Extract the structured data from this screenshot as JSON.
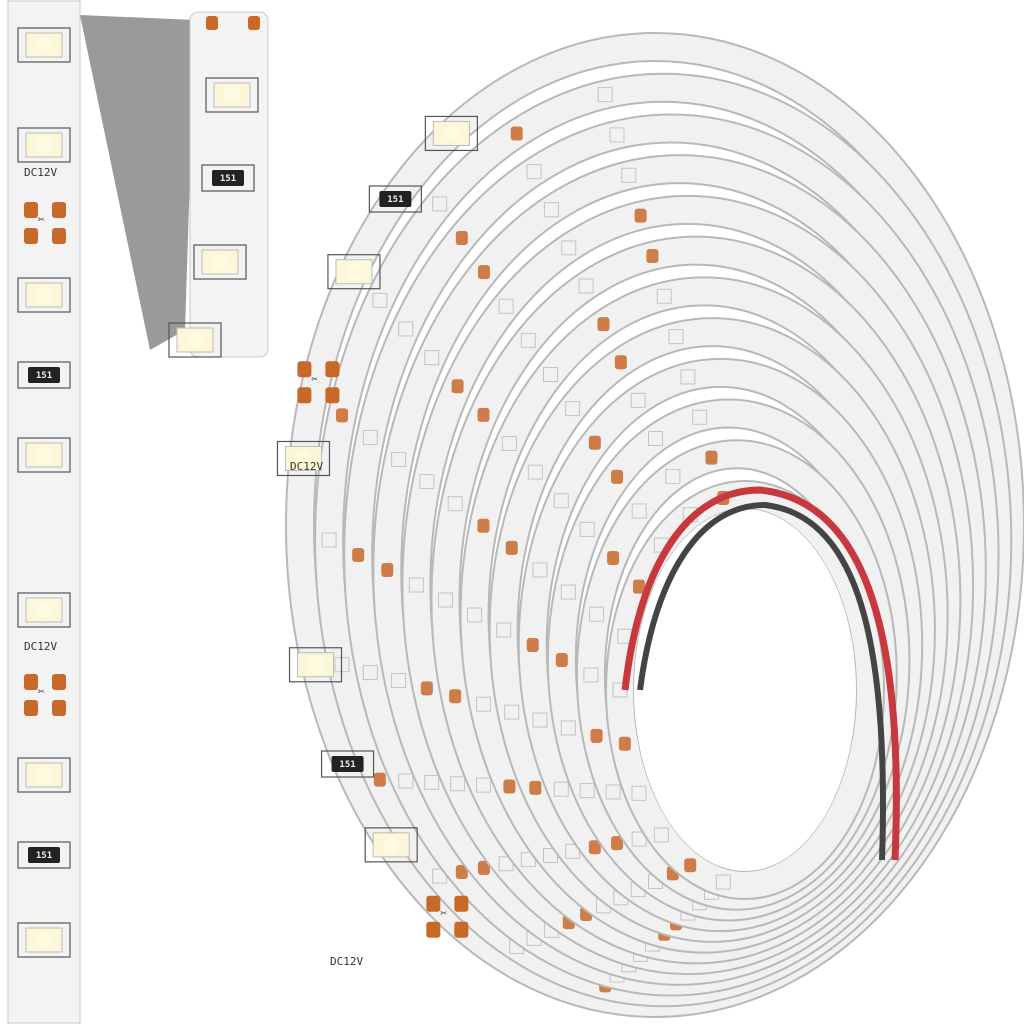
{
  "product": {
    "voltage_label": "DC12V",
    "resistor_code": "151"
  },
  "colors": {
    "background": "#ffffff",
    "strip": "#f3f3f3",
    "strip_edge": "#c9c9c9",
    "led": "#fbf7d8",
    "solder_pad": "#c8692a",
    "wire_red": "#c8383e",
    "wire_black": "#333333"
  }
}
